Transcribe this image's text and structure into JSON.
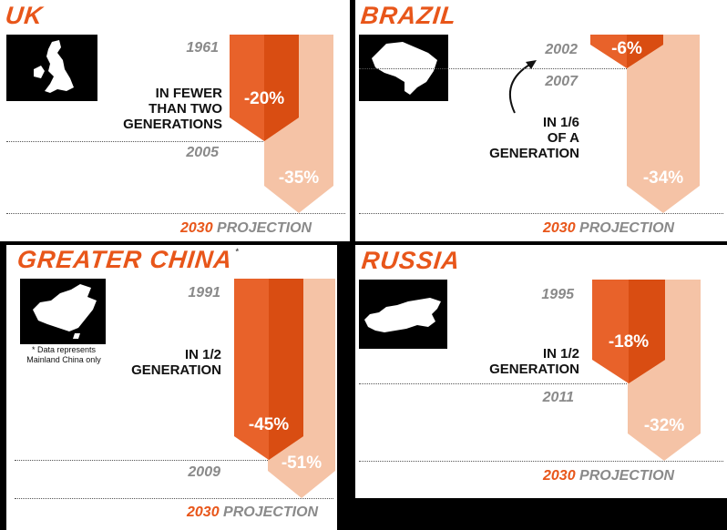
{
  "chart_data": [
    {
      "type": "bar",
      "title": "UK",
      "annotation": "IN FEWER\nTHAN TWO\nGENERATIONS",
      "start_year": "1961",
      "end_year": "2005",
      "values": [
        -20,
        -35
      ],
      "labels": [
        "-20%",
        "-35%"
      ],
      "projection_year": "2030",
      "projection_label": "PROJECTION"
    },
    {
      "type": "bar",
      "title": "BRAZIL",
      "annotation": "IN 1/6\nOF A\nGENERATION",
      "start_year": "2002",
      "end_year": "2007",
      "values": [
        -6,
        -34
      ],
      "labels": [
        "-6%",
        "-34%"
      ],
      "projection_year": "2030",
      "projection_label": "PROJECTION"
    },
    {
      "type": "bar",
      "title": "GREATER CHINA",
      "title_mark": "*",
      "footnote": "* Data represents\nMainland China only",
      "annotation": "IN 1/2\nGENERATION",
      "start_year": "1991",
      "end_year": "2009",
      "values": [
        -45,
        -51
      ],
      "labels": [
        "-45%",
        "-51%"
      ],
      "projection_year": "2030",
      "projection_label": "PROJECTION"
    },
    {
      "type": "bar",
      "title": "RUSSIA",
      "annotation": "IN 1/2\nGENERATION",
      "start_year": "1995",
      "end_year": "2011",
      "values": [
        -18,
        -32
      ],
      "labels": [
        "-18%",
        "-32%"
      ],
      "projection_year": "2030",
      "projection_label": "PROJECTION"
    }
  ],
  "colors": {
    "dark_orange": "#d94d12",
    "mid_orange": "#e8622a",
    "light_peach": "#f5c3a6",
    "title_orange": "#e8561a",
    "year_gray": "#8a8a8a"
  },
  "icons": [
    "uk-map-icon",
    "brazil-map-icon",
    "china-map-icon",
    "russia-map-icon"
  ]
}
